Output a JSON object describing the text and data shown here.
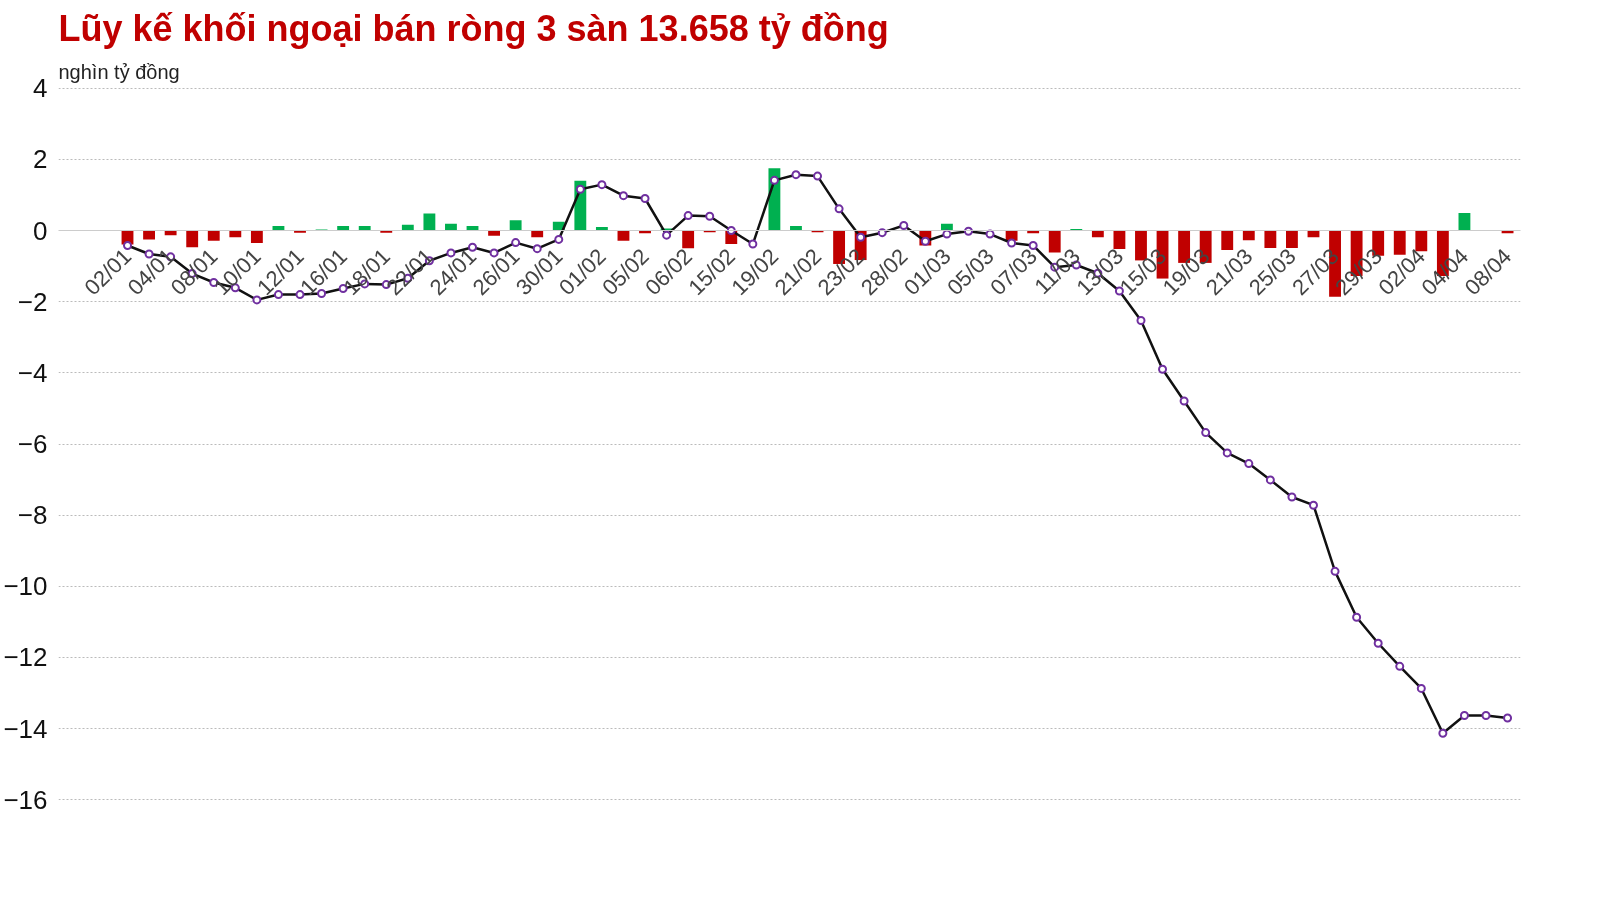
{
  "chart_data": {
    "type": "bar",
    "title": "Lũy kế khối ngoại bán ròng 3 sàn 13.658 tỷ đồng",
    "subtitle": "nghìn tỷ đồng",
    "categories": [
      "02/01",
      null,
      "04/01",
      null,
      "08/01",
      null,
      "10/01",
      null,
      "12/01",
      null,
      "16/01",
      null,
      "18/01",
      null,
      "22/01",
      null,
      "24/01",
      null,
      "26/01",
      null,
      "30/01",
      null,
      "01/02",
      null,
      "05/02",
      null,
      "06/02",
      null,
      "15/02",
      null,
      "19/02",
      null,
      "21/02",
      null,
      "23/02",
      null,
      "28/02",
      null,
      "01/03",
      null,
      "05/03",
      null,
      "07/03",
      null,
      "11/03",
      null,
      "13/03",
      null,
      "15/03",
      null,
      "19/03",
      null,
      "21/03",
      null,
      "25/03",
      null,
      "27/03",
      null,
      "29/03",
      null,
      "02/04",
      null,
      "04/04",
      null,
      "08/04"
    ],
    "series": [
      {
        "values": [
          -0.39,
          -0.25,
          -0.13,
          -0.47,
          -0.29,
          -0.19,
          -0.35,
          0.13,
          -0.06,
          0.03,
          0.13,
          0.13,
          -0.06,
          0.16,
          0.48,
          0.19,
          0.13,
          -0.15,
          0.29,
          -0.19,
          0.25,
          1.4,
          0.1,
          -0.29,
          -0.08,
          0.06,
          -0.5,
          -0.05,
          -0.38,
          null,
          1.75,
          0.13,
          -0.05,
          -0.94,
          -0.83,
          null,
          null,
          -0.42,
          0.19,
          null,
          null,
          -0.29,
          -0.08,
          -0.62,
          0.04,
          -0.19,
          -0.52,
          -0.84,
          -1.35,
          -0.91,
          -0.91,
          -0.55,
          -0.27,
          -0.49,
          -0.49,
          -0.19,
          -1.86,
          -1.28,
          -0.71,
          -0.68,
          -0.58,
          -1.28,
          0.49,
          null,
          -0.08
        ],
        "colors": [
          "#c00000",
          "#c00000",
          "#c00000",
          "#c00000",
          "#c00000",
          "#c00000",
          "#c00000",
          "#00b050",
          "#c00000",
          "#00b050",
          "#00b050",
          "#00b050",
          "#c00000",
          "#00b050",
          "#00b050",
          "#00b050",
          "#00b050",
          "#c00000",
          "#00b050",
          "#c00000",
          "#00b050",
          "#00b050",
          "#00b050",
          "#c00000",
          "#c00000",
          "#00b050",
          "#c00000",
          "#c00000",
          "#c00000",
          null,
          "#00b050",
          "#00b050",
          "#c00000",
          "#c00000",
          "#c00000",
          null,
          null,
          "#c00000",
          "#00b050",
          null,
          null,
          "#c00000",
          "#c00000",
          "#c00000",
          "#00b050",
          "#c00000",
          "#c00000",
          "#c00000",
          "#c00000",
          "#c00000",
          "#c00000",
          "#c00000",
          "#c00000",
          "#c00000",
          "#c00000",
          "#c00000",
          "#c00000",
          "#c00000",
          "#c00000",
          "#c00000",
          "#c00000",
          "#c00000",
          "#00b050",
          null,
          "#c00000"
        ]
      },
      {
        "type": "line",
        "color": "#111111",
        "marker": "circle",
        "values": [
          -0.42,
          -0.66,
          -0.74,
          -1.21,
          -1.46,
          -1.61,
          -1.95,
          -1.8,
          -1.8,
          -1.77,
          -1.63,
          -1.5,
          -1.52,
          -1.34,
          -0.85,
          -0.63,
          -0.47,
          -0.63,
          -0.34,
          -0.51,
          -0.25,
          1.16,
          1.29,
          0.98,
          0.9,
          -0.13,
          0.42,
          0.4,
          0.0,
          -0.38,
          1.41,
          1.57,
          1.53,
          0.61,
          -0.19,
          -0.06,
          0.14,
          -0.3,
          -0.1,
          -0.02,
          -0.1,
          -0.35,
          -0.42,
          -1.03,
          -0.97,
          -1.2,
          -1.7,
          -2.53,
          -3.9,
          -4.79,
          -5.68,
          -6.25,
          -6.55,
          -7.01,
          -7.49,
          -7.72,
          -9.58,
          -10.87,
          -11.6,
          -12.25,
          -12.87,
          -14.13,
          -13.63,
          -13.63,
          -13.7
        ]
      }
    ],
    "ylim": [
      -16,
      4
    ],
    "yticks": [
      4,
      2,
      0,
      -2,
      -4,
      -6,
      -8,
      -10,
      -12,
      -14,
      -16
    ],
    "grid": "y"
  }
}
